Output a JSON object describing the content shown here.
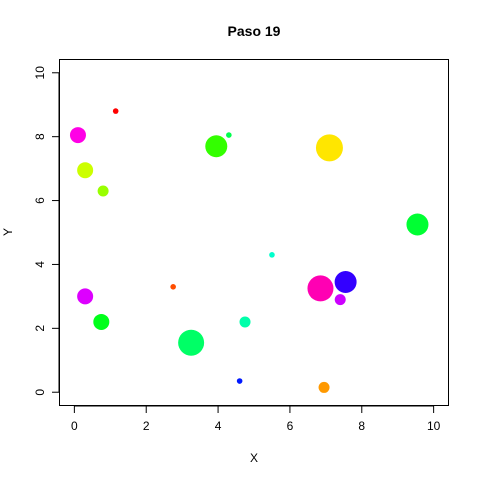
{
  "chart_data": {
    "type": "scatter",
    "title": "Paso 19",
    "xlabel": "X",
    "ylabel": "Y",
    "xlim": [
      -0.4,
      10.4
    ],
    "ylim": [
      -0.4,
      10.4
    ],
    "xticks": [
      0,
      2,
      4,
      6,
      8,
      10
    ],
    "yticks": [
      0,
      2,
      4,
      6,
      8,
      10
    ],
    "grid": false,
    "points": [
      {
        "x": 0.1,
        "y": 8.05,
        "size": 8.0,
        "color": "#FF00E6"
      },
      {
        "x": 1.15,
        "y": 8.8,
        "size": 2.8,
        "color": "#FF0000"
      },
      {
        "x": 0.3,
        "y": 6.95,
        "size": 8.0,
        "color": "#CCFF00"
      },
      {
        "x": 0.8,
        "y": 6.3,
        "size": 5.5,
        "color": "#99FF00"
      },
      {
        "x": 3.95,
        "y": 7.7,
        "size": 11.0,
        "color": "#33FF00"
      },
      {
        "x": 4.3,
        "y": 8.05,
        "size": 2.8,
        "color": "#00FF4D"
      },
      {
        "x": 7.1,
        "y": 7.65,
        "size": 13.5,
        "color": "#FFE600"
      },
      {
        "x": 9.55,
        "y": 5.25,
        "size": 11.0,
        "color": "#00FF33"
      },
      {
        "x": 5.5,
        "y": 4.3,
        "size": 2.8,
        "color": "#00FFCC"
      },
      {
        "x": 0.3,
        "y": 3.0,
        "size": 8.0,
        "color": "#DD00FF"
      },
      {
        "x": 2.75,
        "y": 3.3,
        "size": 2.8,
        "color": "#FF4D00"
      },
      {
        "x": 0.75,
        "y": 2.2,
        "size": 8.0,
        "color": "#00FF1A"
      },
      {
        "x": 3.25,
        "y": 1.55,
        "size": 13.0,
        "color": "#00FF66"
      },
      {
        "x": 4.75,
        "y": 2.2,
        "size": 5.5,
        "color": "#00FFAA"
      },
      {
        "x": 6.85,
        "y": 3.25,
        "size": 13.0,
        "color": "#FF00B3"
      },
      {
        "x": 7.55,
        "y": 3.45,
        "size": 11.0,
        "color": "#3300FF"
      },
      {
        "x": 7.4,
        "y": 2.9,
        "size": 5.5,
        "color": "#CC00FF"
      },
      {
        "x": 4.6,
        "y": 0.35,
        "size": 2.8,
        "color": "#0019FF"
      },
      {
        "x": 6.95,
        "y": 0.15,
        "size": 5.5,
        "color": "#FF9900"
      }
    ]
  }
}
